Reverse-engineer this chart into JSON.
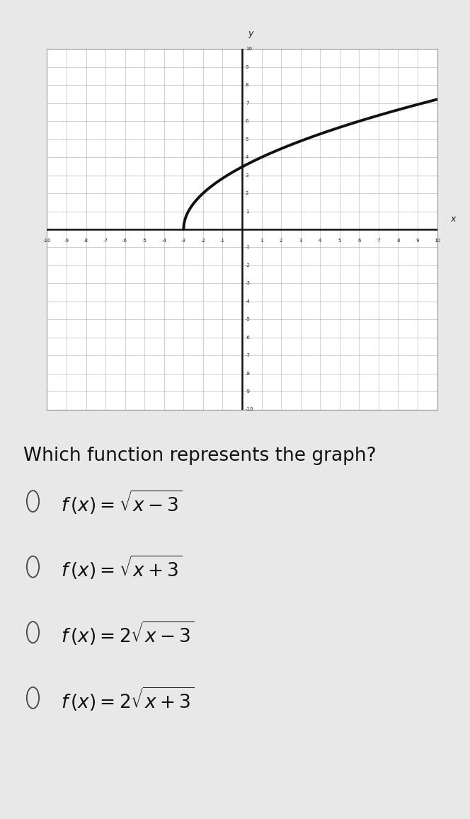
{
  "question": "Which function represents the graph?",
  "function": "2*sqrt(x+3)",
  "x_start": -3,
  "x_end": 10,
  "xlim": [
    -10,
    10
  ],
  "ylim": [
    -10,
    10
  ],
  "grid_color": "#bbbbbb",
  "curve_color": "#111111",
  "axis_color": "#111111",
  "plot_bg_color": "#ffffff",
  "page_bg_color": "#e8e8e8",
  "question_fontsize": 19,
  "option_fontsize": 19,
  "curve_linewidth": 2.8,
  "ytick_labels": [
    "10",
    "9",
    "8",
    "7",
    "6",
    "5",
    "4",
    "3",
    "2",
    "1"
  ],
  "xtick_labels": [
    "-10",
    "-9",
    "-8",
    "-7",
    "-6",
    "-5",
    "-4",
    "-3",
    "-2",
    "-1",
    "1",
    "2",
    "3",
    "4",
    "5",
    "6",
    "7",
    "8",
    "9",
    "10"
  ]
}
